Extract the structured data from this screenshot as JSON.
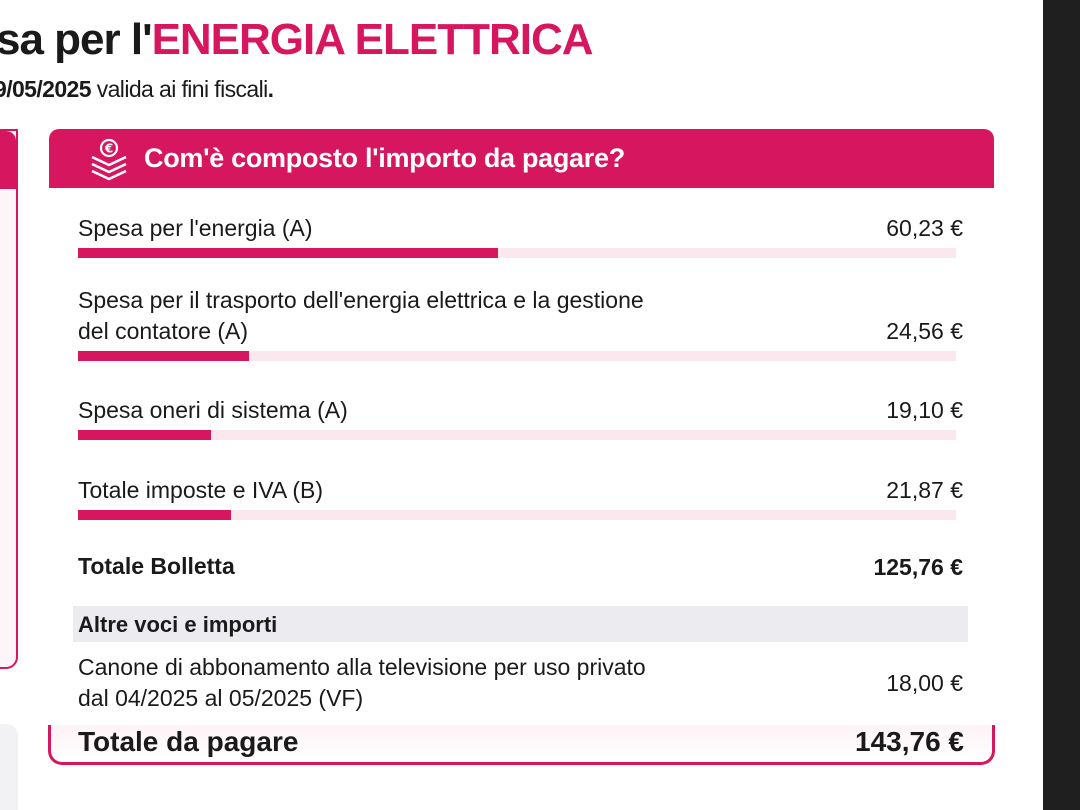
{
  "header": {
    "title_dark": "sa per l'",
    "title_accent": "ENERGIA ELETTRICA",
    "subtitle_date": "9/05/2025",
    "subtitle_text": " valida ai fini fiscali",
    "subtitle_period": "."
  },
  "card": {
    "title": "Com'è composto l'importo da pagare?",
    "icon": "euro-stack-icon",
    "rows": [
      {
        "label": "Spesa per l'energia (A)",
        "amount": "60,23 €",
        "value": 60.23
      },
      {
        "label_line1": "Spesa per il trasporto dell'energia elettrica e la gestione",
        "label_line2": "del contatore (A)",
        "amount": "24,56 €",
        "value": 24.56
      },
      {
        "label": "Spesa oneri di sistema (A)",
        "amount": "19,10 €",
        "value": 19.1
      },
      {
        "label": "Totale imposte e IVA (B)",
        "amount": "21,87 €",
        "value": 21.87
      }
    ],
    "bar_max": 125.76,
    "totale_bolletta": {
      "label": "Totale Bolletta",
      "amount": "125,76 €"
    },
    "altre_voci": {
      "label": "Altre voci e importi",
      "item": {
        "label_line1": "Canone di abbonamento alla televisione per uso privato",
        "label_line2": "dal 04/2025 al 05/2025 (VF)",
        "amount": "18,00 €"
      }
    },
    "totale_da_pagare": {
      "label": "Totale da pagare",
      "amount": "143,76 €"
    }
  },
  "colors": {
    "accent": "#d6175f",
    "track": "#fbe8ef",
    "band": "#ececf0"
  }
}
